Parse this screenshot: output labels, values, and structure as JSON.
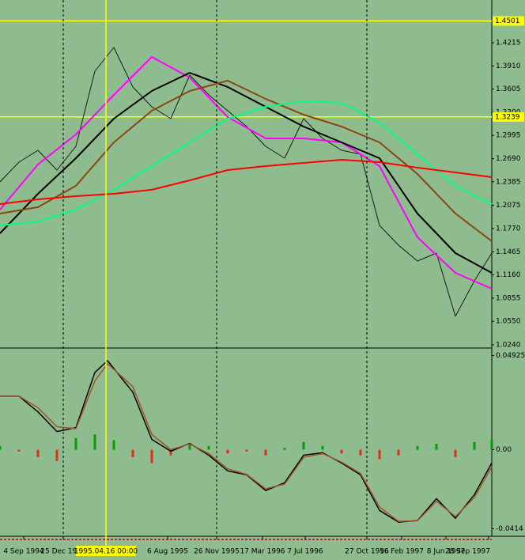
{
  "chart_data": [
    {
      "type": "line",
      "xlim": [
        -4,
        151.5
      ],
      "ylim": [
        1.0198,
        1.4777
      ],
      "yticks": [
        1.4215,
        {
          "value": 1.391,
          "label": "1.3910"
        },
        1.3605,
        {
          "value": 1.33,
          "label": "1.3300"
        },
        1.2995,
        {
          "value": 1.269,
          "label": "1.2690"
        },
        1.2385,
        1.2075,
        {
          "value": 1.177,
          "label": "1.1770"
        },
        1.1465,
        {
          "value": 1.116,
          "label": "1.1160"
        },
        1.0855,
        {
          "value": 1.055,
          "label": "1.0550"
        },
        {
          "value": 1.024,
          "label": "1.0240"
        }
      ],
      "levels": [
        1.4501,
        1.3239
      ],
      "level_color": "#ffff00",
      "background": "#8fbc8f",
      "series": [
        {
          "color": "#1a1a1a",
          "width": 1,
          "x": [
            -4,
            2,
            8,
            14,
            20,
            26,
            32,
            38,
            44,
            50,
            56,
            62,
            68,
            74,
            80,
            86,
            92,
            98,
            104,
            110,
            116,
            122,
            128,
            134,
            140,
            146,
            151.5
          ],
          "values": [
            1.2384,
            1.2644,
            1.28,
            1.254,
            1.2852,
            1.384,
            1.4153,
            1.3632,
            1.3372,
            1.3216,
            1.3788,
            1.3528,
            1.332,
            1.3112,
            1.2852,
            1.2696,
            1.3216,
            1.2956,
            1.28,
            1.2748,
            1.1811,
            1.1551,
            1.1343,
            1.1447,
            1.0615,
            1.1083,
            1.1447
          ]
        },
        {
          "color": "#ff00ff",
          "width": 2,
          "x": [
            -4,
            8,
            20,
            32,
            44,
            56,
            68,
            80,
            92,
            104,
            116,
            128,
            140,
            151.5
          ],
          "values": [
            1.2019,
            1.2613,
            1.3008,
            1.3528,
            1.4028,
            1.3757,
            1.3237,
            1.2956,
            1.2956,
            1.2904,
            1.2592,
            1.1655,
            1.1187,
            1.0979
          ]
        },
        {
          "color": "#000000",
          "width": 2,
          "x": [
            -4,
            8,
            20,
            32,
            44,
            56,
            68,
            80,
            92,
            104,
            116,
            128,
            140,
            151.5
          ],
          "values": [
            1.1707,
            1.2227,
            1.2696,
            1.3216,
            1.358,
            1.382,
            1.3632,
            1.3372,
            1.3112,
            1.2904,
            1.2696,
            1.1967,
            1.1447,
            1.1187
          ]
        },
        {
          "color": "#8b4513",
          "width": 2,
          "x": [
            -4,
            8,
            20,
            32,
            44,
            56,
            68,
            80,
            92,
            104,
            116,
            128,
            140,
            151.5
          ],
          "values": [
            1.1967,
            1.2051,
            1.2332,
            1.2904,
            1.332,
            1.358,
            1.3716,
            1.3476,
            1.3268,
            1.3112,
            1.2904,
            1.2488,
            1.1967,
            1.1603
          ]
        },
        {
          "color": "#00ff7f",
          "width": 2,
          "x": [
            -4,
            8,
            20,
            32,
            44,
            56,
            68,
            80,
            92,
            104,
            116,
            128,
            140,
            151.5
          ],
          "values": [
            1.1811,
            1.1863,
            1.2019,
            1.228,
            1.2592,
            1.2904,
            1.3216,
            1.3372,
            1.3445,
            1.3424,
            1.3164,
            1.2748,
            1.2332,
            1.2092
          ]
        },
        {
          "color": "#ff0000",
          "width": 2,
          "x": [
            -4,
            8,
            20,
            32,
            44,
            56,
            68,
            80,
            92,
            104,
            116,
            128,
            140,
            151.5
          ],
          "values": [
            1.2092,
            1.2155,
            1.2196,
            1.2227,
            1.228,
            1.2404,
            1.254,
            1.2592,
            1.2633,
            1.2675,
            1.2644,
            1.2571,
            1.2508,
            1.2446
          ]
        }
      ]
    },
    {
      "type": "line",
      "xlim": [
        -4,
        151.5
      ],
      "ylim": [
        -0.0445,
        0.0528
      ],
      "yticks": [
        0.04925,
        {
          "value": 0,
          "label": "0.00"
        },
        -0.0414
      ],
      "xticks": [
        {
          "value": 3.5,
          "label": "4 Sep 1994"
        },
        {
          "value": 16,
          "label": "25 Dec 1994"
        },
        {
          "value": 49,
          "label": "6 Aug 1995"
        },
        {
          "value": 64.5,
          "label": "26 Nov 1995"
        },
        {
          "value": 79,
          "label": "17 Mar 1996"
        },
        {
          "value": 92.5,
          "label": "7 Jul 1996"
        },
        {
          "value": 112,
          "label": "27 Oct 1996"
        },
        {
          "value": 123,
          "label": "16 Feb 1997"
        },
        {
          "value": 137,
          "label": "8 Jun 1997"
        },
        {
          "value": 150.5,
          "label": "28 Sep 1997"
        }
      ],
      "xgrid": [
        16,
        64.5,
        112
      ],
      "crosshair": {
        "x": 29.5,
        "label": "1995.04.16 00:00"
      },
      "series": [
        {
          "type": "bar",
          "pos_color": "#00a000",
          "neg_color": "#e03020",
          "x": [
            -4,
            2,
            8,
            14,
            20,
            26,
            32,
            38,
            44,
            50,
            56,
            62,
            68,
            74,
            80,
            86,
            92,
            98,
            104,
            110,
            116,
            122,
            128,
            134,
            140,
            146,
            151.5
          ],
          "values": [
            0.002,
            -0.001,
            -0.004,
            -0.006,
            0.006,
            0.008,
            0.005,
            -0.004,
            -0.007,
            -0.003,
            0.003,
            0.002,
            -0.002,
            -0.001,
            -0.003,
            0.001,
            0.004,
            0.002,
            -0.002,
            -0.003,
            -0.005,
            -0.003,
            0.002,
            0.003,
            -0.004,
            0.004,
            0.005
          ]
        },
        {
          "type": "line",
          "color": "#000000",
          "width": 1.5,
          "x": [
            -4,
            2,
            8,
            14,
            20,
            26,
            30,
            38,
            44,
            50,
            56,
            62,
            68,
            74,
            80,
            86,
            92,
            98,
            104,
            110,
            116,
            122,
            128,
            134,
            140,
            146,
            151.5
          ],
          "values": [
            0.028,
            0.028,
            0.0198,
            0.0095,
            0.0115,
            0.0404,
            0.0466,
            0.0301,
            0.0054,
            -0.0008,
            0.0033,
            -0.0029,
            -0.0111,
            -0.0132,
            -0.0214,
            -0.0173,
            -0.0029,
            -0.0016,
            -0.007,
            -0.0132,
            -0.0318,
            -0.0379,
            -0.0371,
            -0.0256,
            -0.0359,
            -0.0235,
            -0.007
          ]
        },
        {
          "type": "line",
          "color": "#a0522d",
          "width": 1.5,
          "x": [
            -4,
            2,
            8,
            14,
            20,
            26,
            30,
            38,
            44,
            50,
            56,
            62,
            68,
            74,
            80,
            86,
            92,
            98,
            104,
            110,
            116,
            122,
            128,
            134,
            140,
            146,
            151.5
          ],
          "values": [
            0.028,
            0.028,
            0.022,
            0.012,
            0.011,
            0.036,
            0.045,
            0.033,
            0.008,
            0,
            0.003,
            -0.002,
            -0.01,
            -0.013,
            -0.0205,
            -0.018,
            -0.004,
            -0.002,
            -0.0065,
            -0.0125,
            -0.03,
            -0.0375,
            -0.0372,
            -0.027,
            -0.035,
            -0.025,
            -0.009
          ]
        }
      ]
    }
  ]
}
